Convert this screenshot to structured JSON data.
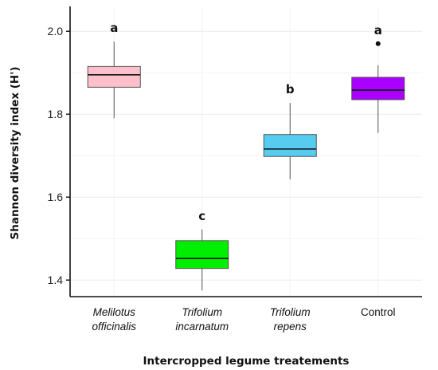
{
  "chart_data": {
    "type": "box",
    "xlabel": "Intercropped legume treatements",
    "ylabel": "Shannon diversity index (H')",
    "ylim": [
      1.36,
      2.06
    ],
    "yticks": [
      1.4,
      1.6,
      1.8,
      2.0
    ],
    "ytick_labels": [
      "1.4",
      "1.6",
      "1.8",
      "2.0"
    ],
    "grid": true,
    "categories": [
      {
        "lines": [
          "Melilotus",
          "officinalis"
        ],
        "italic": true
      },
      {
        "lines": [
          "Trifolium",
          "incarnatum"
        ],
        "italic": true
      },
      {
        "lines": [
          "Trifolium",
          "repens"
        ],
        "italic": true
      },
      {
        "lines": [
          "Control"
        ],
        "italic": false
      }
    ],
    "boxes": [
      {
        "min": 1.79,
        "q1": 1.865,
        "median": 1.895,
        "q3": 1.915,
        "max": 1.975,
        "outliers": [],
        "letter": "a",
        "color": "#ffc0cb"
      },
      {
        "min": 1.375,
        "q1": 1.428,
        "median": 1.452,
        "q3": 1.495,
        "max": 1.522,
        "outliers": [],
        "letter": "c",
        "color": "#00ee00"
      },
      {
        "min": 1.643,
        "q1": 1.698,
        "median": 1.716,
        "q3": 1.751,
        "max": 1.827,
        "outliers": [],
        "letter": "b",
        "color": "#56cdf0"
      },
      {
        "min": 1.755,
        "q1": 1.835,
        "median": 1.858,
        "q3": 1.889,
        "max": 1.918,
        "outliers": [
          1.97
        ],
        "letter": "a",
        "color": "#aa00ff"
      }
    ]
  }
}
